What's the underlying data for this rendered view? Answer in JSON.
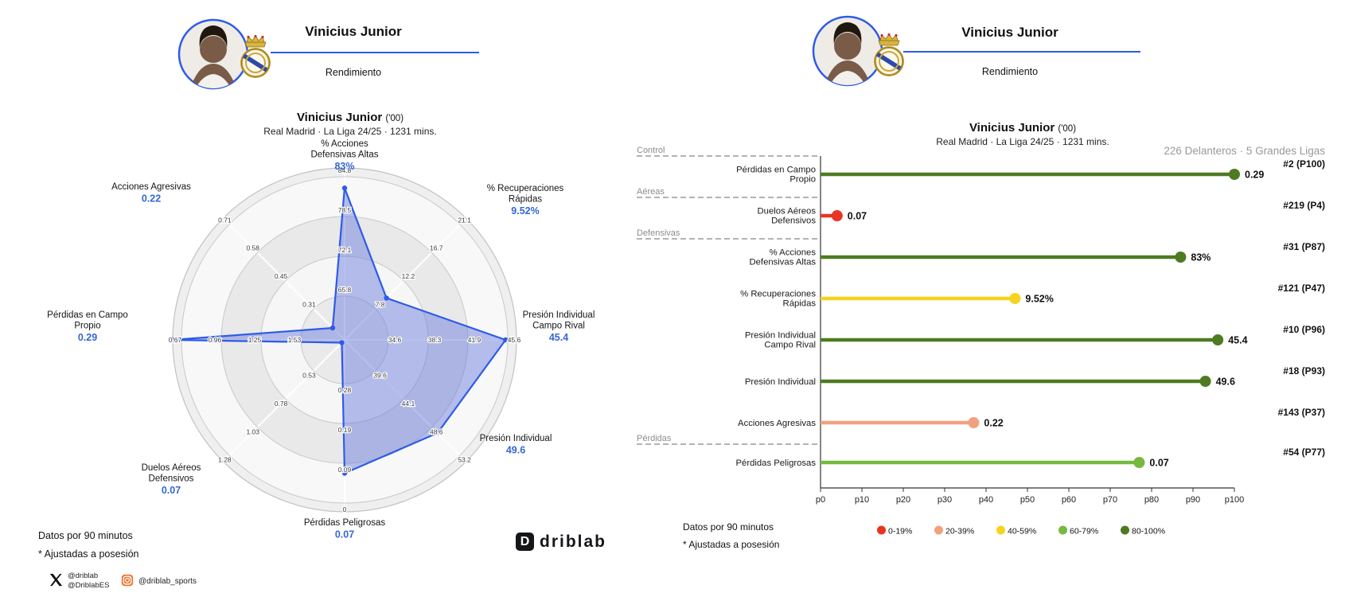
{
  "header": {
    "left": {
      "title": "Vinicius Junior",
      "tagline": "Rendimiento"
    },
    "right": {
      "title": "Vinicius Junior",
      "tagline": "Rendimiento"
    }
  },
  "radar_panel": {
    "title": "Vinicius Junior",
    "title_note": "('00)",
    "subtitle": "Real Madrid · La Liga 24/25 · 1231 mins.",
    "footnotes": [
      "Datos por 90 minutos",
      "* Ajustadas a posesión"
    ],
    "social": {
      "x_handles": [
        "@driblab",
        "@DriblabES"
      ],
      "instagram_handle": "@driblab_sports"
    }
  },
  "lollipop_panel": {
    "title": "Vinicius Junior",
    "title_note": "('00)",
    "subtitle": "Real Madrid · La Liga 24/25 · 1231 mins.",
    "context_label": "226 Delanteros · 5 Grandes Ligas",
    "footnotes": [
      "Datos por 90 minutos",
      "* Ajustadas a posesión"
    ]
  },
  "brand": {
    "logo_text": "driblab",
    "logo_letter": "D"
  },
  "colors": {
    "accent_blue": "#2e5be6",
    "value_blue": "#3467d6",
    "radar_fill": "#6d7fdc",
    "radar_stroke": "#2e5be6"
  },
  "chart_data": [
    {
      "type": "radar",
      "title": "Vinicius Junior ('00)",
      "subtitle": "Real Madrid · La Liga 24/25 · 1231 mins.",
      "units_note": "Datos por 90 minutos, * Ajustadas a posesión",
      "axes": [
        {
          "label": [
            "% Acciones",
            "Defensivas Altas"
          ],
          "value": 83,
          "value_label": "83%",
          "ticks_inner_to_outer": [
            "65.8",
            "72.1",
            "78.5",
            "84.8"
          ]
        },
        {
          "label": [
            "% Recuperaciones",
            "Rápidas"
          ],
          "value": 9.52,
          "value_label": "9.52%",
          "ticks_inner_to_outer": [
            "7.8",
            "12.2",
            "16.7",
            "21.1"
          ]
        },
        {
          "label": [
            "Presión Individual",
            "Campo Rival"
          ],
          "value": 45.4,
          "value_label": "45.4",
          "ticks_inner_to_outer": [
            "34.6",
            "38.3",
            "41.9",
            "45.6"
          ]
        },
        {
          "label": [
            "Presión Individual"
          ],
          "value": 49.6,
          "value_label": "49.6",
          "ticks_inner_to_outer": [
            "39.6",
            "44.1",
            "48.6",
            "53.2"
          ]
        },
        {
          "label": [
            "Pérdidas Peligrosas"
          ],
          "value": 0.07,
          "value_label": "0.07",
          "ticks_inner_to_outer": [
            "0.28",
            "0.19",
            "0.09",
            "0"
          ]
        },
        {
          "label": [
            "Duelos Aéreos",
            "Defensivos"
          ],
          "value": 0.07,
          "value_label": "0.07",
          "ticks_inner_to_outer": [
            "0.53",
            "0.78",
            "1.03",
            "1.28"
          ]
        },
        {
          "label": [
            "Pérdidas en Campo",
            "Propio"
          ],
          "value": 0.29,
          "value_label": "0.29",
          "ticks_inner_to_outer": [
            "1.53",
            "1.25",
            "0.96",
            "0.67"
          ]
        },
        {
          "label": [
            "Acciones Agresivas"
          ],
          "value": 0.22,
          "value_label": "0.22",
          "ticks_inner_to_outer": [
            "0.31",
            "0.45",
            "0.58",
            "0.71"
          ]
        }
      ]
    },
    {
      "type": "lollipop",
      "context_label": "226 Delanteros · 5 Grandes Ligas",
      "x_axis": {
        "tick_labels": [
          "p0",
          "p10",
          "p20",
          "p30",
          "p40",
          "p50",
          "p60",
          "p70",
          "p80",
          "p90",
          "p100"
        ],
        "min": 0,
        "max": 100
      },
      "groups": [
        {
          "label": "Control",
          "before_row": 0
        },
        {
          "label": "Aéreas",
          "before_row": 1
        },
        {
          "label": "Defensivas",
          "before_row": 2
        },
        {
          "label": "Pérdidas",
          "before_row": 7
        }
      ],
      "rows": [
        {
          "label": [
            "Pérdidas en Campo",
            "Propio"
          ],
          "value_label": "0.29",
          "percentile": 100,
          "rank_label": "#2 (P100)",
          "band": "80-100%"
        },
        {
          "label": [
            "Duelos Aéreos",
            "Defensivos"
          ],
          "value_label": "0.07",
          "percentile": 4,
          "rank_label": "#219 (P4)",
          "band": "0-19%"
        },
        {
          "label": [
            "% Acciones",
            "Defensivas Altas"
          ],
          "value_label": "83%",
          "percentile": 87,
          "rank_label": "#31 (P87)",
          "band": "80-100%"
        },
        {
          "label": [
            "% Recuperaciones",
            "Rápidas"
          ],
          "value_label": "9.52%",
          "percentile": 47,
          "rank_label": "#121 (P47)",
          "band": "40-59%"
        },
        {
          "label": [
            "Presión Individual",
            "Campo Rival"
          ],
          "value_label": "45.4",
          "percentile": 96,
          "rank_label": "#10 (P96)",
          "band": "80-100%"
        },
        {
          "label": [
            "Presión Individual"
          ],
          "value_label": "49.6",
          "percentile": 93,
          "rank_label": "#18 (P93)",
          "band": "80-100%"
        },
        {
          "label": [
            "Acciones Agresivas"
          ],
          "value_label": "0.22",
          "percentile": 37,
          "rank_label": "#143 (P37)",
          "band": "20-39%"
        },
        {
          "label": [
            "Pérdidas Peligrosas"
          ],
          "value_label": "0.07",
          "percentile": 77,
          "rank_label": "#54 (P77)",
          "band": "60-79%"
        }
      ],
      "legend": [
        {
          "label": "0-19%",
          "color": "#ea3323"
        },
        {
          "label": "20-39%",
          "color": "#f2a17e"
        },
        {
          "label": "40-59%",
          "color": "#f6d31e"
        },
        {
          "label": "60-79%",
          "color": "#76b93f"
        },
        {
          "label": "80-100%",
          "color": "#4e7b21"
        }
      ]
    }
  ]
}
